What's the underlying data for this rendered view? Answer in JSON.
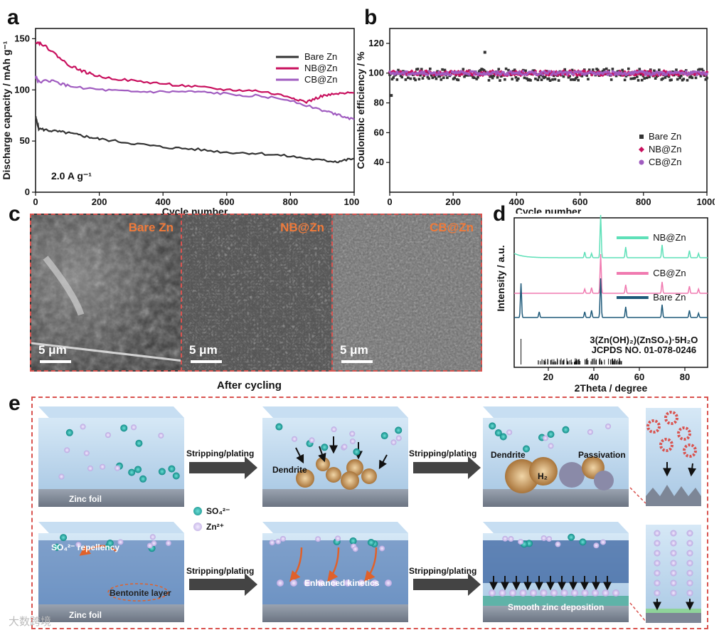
{
  "panels": {
    "a": "a",
    "b": "b",
    "c": "c",
    "d": "d",
    "e": "e"
  },
  "chart_data": [
    {
      "type": "line",
      "title": "",
      "xlabel": "Cycle number",
      "ylabel": "Discharge capacity / mAh g⁻¹",
      "xlim": [
        0,
        1000
      ],
      "ylim": [
        0,
        160
      ],
      "xticks": [
        0,
        200,
        400,
        600,
        800,
        1000
      ],
      "yticks": [
        0,
        50,
        100,
        150
      ],
      "annotation": "2.0 A g⁻¹",
      "legend": "top-right",
      "series": [
        {
          "name": "Bare Zn",
          "color": "#333333",
          "x": [
            0,
            10,
            50,
            100,
            150,
            200,
            300,
            400,
            500,
            600,
            700,
            800,
            900,
            950,
            1000
          ],
          "values": [
            74,
            62,
            60,
            58,
            55,
            52,
            48,
            44,
            42,
            39,
            38,
            35,
            31,
            30,
            33
          ]
        },
        {
          "name": "NB@Zn",
          "color": "#c8105e",
          "x": [
            0,
            20,
            50,
            100,
            150,
            200,
            300,
            400,
            500,
            600,
            700,
            800,
            850,
            900,
            950,
            1000
          ],
          "values": [
            147,
            145,
            138,
            125,
            118,
            113,
            109,
            106,
            103,
            100,
            99,
            93,
            88,
            94,
            96,
            97
          ]
        },
        {
          "name": "CB@Zn",
          "color": "#a05cc0",
          "x": [
            0,
            10,
            50,
            100,
            200,
            300,
            400,
            500,
            600,
            700,
            800,
            900,
            950,
            1000
          ],
          "values": [
            113,
            108,
            109,
            104,
            100,
            98,
            98,
            98,
            96,
            94,
            90,
            80,
            76,
            71
          ]
        }
      ]
    },
    {
      "type": "scatter",
      "title": "",
      "xlabel": "Cycle number",
      "ylabel": "Coulombic efficiency / %",
      "xlim": [
        0,
        1000
      ],
      "ylim": [
        20,
        130
      ],
      "xticks": [
        0,
        200,
        400,
        600,
        800,
        1000
      ],
      "yticks": [
        40,
        60,
        80,
        100,
        120
      ],
      "legend": "bottom-right",
      "series": [
        {
          "name": "Bare Zn",
          "color": "#333333",
          "marker": "square",
          "mean": 99,
          "spread": 4,
          "outliers": [
            {
              "x": 300,
              "y": 114
            },
            {
              "x": 5,
              "y": 85
            }
          ]
        },
        {
          "name": "NB@Zn",
          "color": "#c8105e",
          "marker": "diamond",
          "mean": 100,
          "spread": 1.5
        },
        {
          "name": "CB@Zn",
          "color": "#a05cc0",
          "marker": "circle",
          "mean": 100,
          "spread": 1.2
        }
      ]
    },
    {
      "type": "line",
      "title": "",
      "xlabel": "2Theta / degree",
      "ylabel": "Intensity / a.u.",
      "xlim": [
        5,
        90
      ],
      "xticks": [
        20,
        40,
        60,
        80
      ],
      "legend": "inline-right",
      "series": [
        {
          "name": "NB@Zn",
          "color": "#5ee0b8",
          "peaks": [
            [
              36,
              8
            ],
            [
              39,
              6
            ],
            [
              43,
              60
            ],
            [
              54,
              15
            ],
            [
              70,
              18
            ],
            [
              82,
              10
            ],
            [
              86,
              6
            ]
          ]
        },
        {
          "name": "CB@Zn",
          "color": "#f07ab0",
          "peaks": [
            [
              36,
              6
            ],
            [
              39,
              8
            ],
            [
              43,
              55
            ],
            [
              54,
              12
            ],
            [
              70,
              16
            ],
            [
              82,
              10
            ],
            [
              86,
              6
            ]
          ]
        },
        {
          "name": "Bare Zn",
          "color": "#1f5a7a",
          "peaks": [
            [
              8,
              48
            ],
            [
              16,
              8
            ],
            [
              36,
              8
            ],
            [
              39,
              10
            ],
            [
              43,
              55
            ],
            [
              54,
              15
            ],
            [
              70,
              18
            ],
            [
              82,
              10
            ],
            [
              86,
              6
            ]
          ]
        }
      ],
      "reference": {
        "label1": "3(Zn(OH)₂)(ZnSO₄)·5H₂O",
        "label2": "JCPDS NO. 01-078-0246"
      }
    }
  ],
  "sem": {
    "caption": "After cycling",
    "panels": [
      {
        "title": "Bare Zn",
        "scale": "5 μm"
      },
      {
        "title": "NB@Zn",
        "scale": "5 μm"
      },
      {
        "title": "CB@Zn",
        "scale": "5 μm"
      }
    ]
  },
  "schematic": {
    "arrow_label": "Stripping/plating",
    "zinc_foil": "Zinc foil",
    "dendrite": "Dendrite",
    "passivation": "Passivation",
    "h2": "H₂",
    "legend_so4": "SO₄²⁻",
    "legend_zn": "Zn²⁺",
    "repellency": "SO₄²⁻ repellency",
    "bentonite": "Bentonite layer",
    "kinetics": "Enhanced kinetics",
    "smooth": "Smooth zinc deposition",
    "watermark": "大数跨境",
    "colors": {
      "teal": "#1aa7a0",
      "lilac": "#c9b8e8",
      "water": "#bcd6ec",
      "foil": "#7d8696",
      "bentonite": "#3a66a8"
    }
  }
}
